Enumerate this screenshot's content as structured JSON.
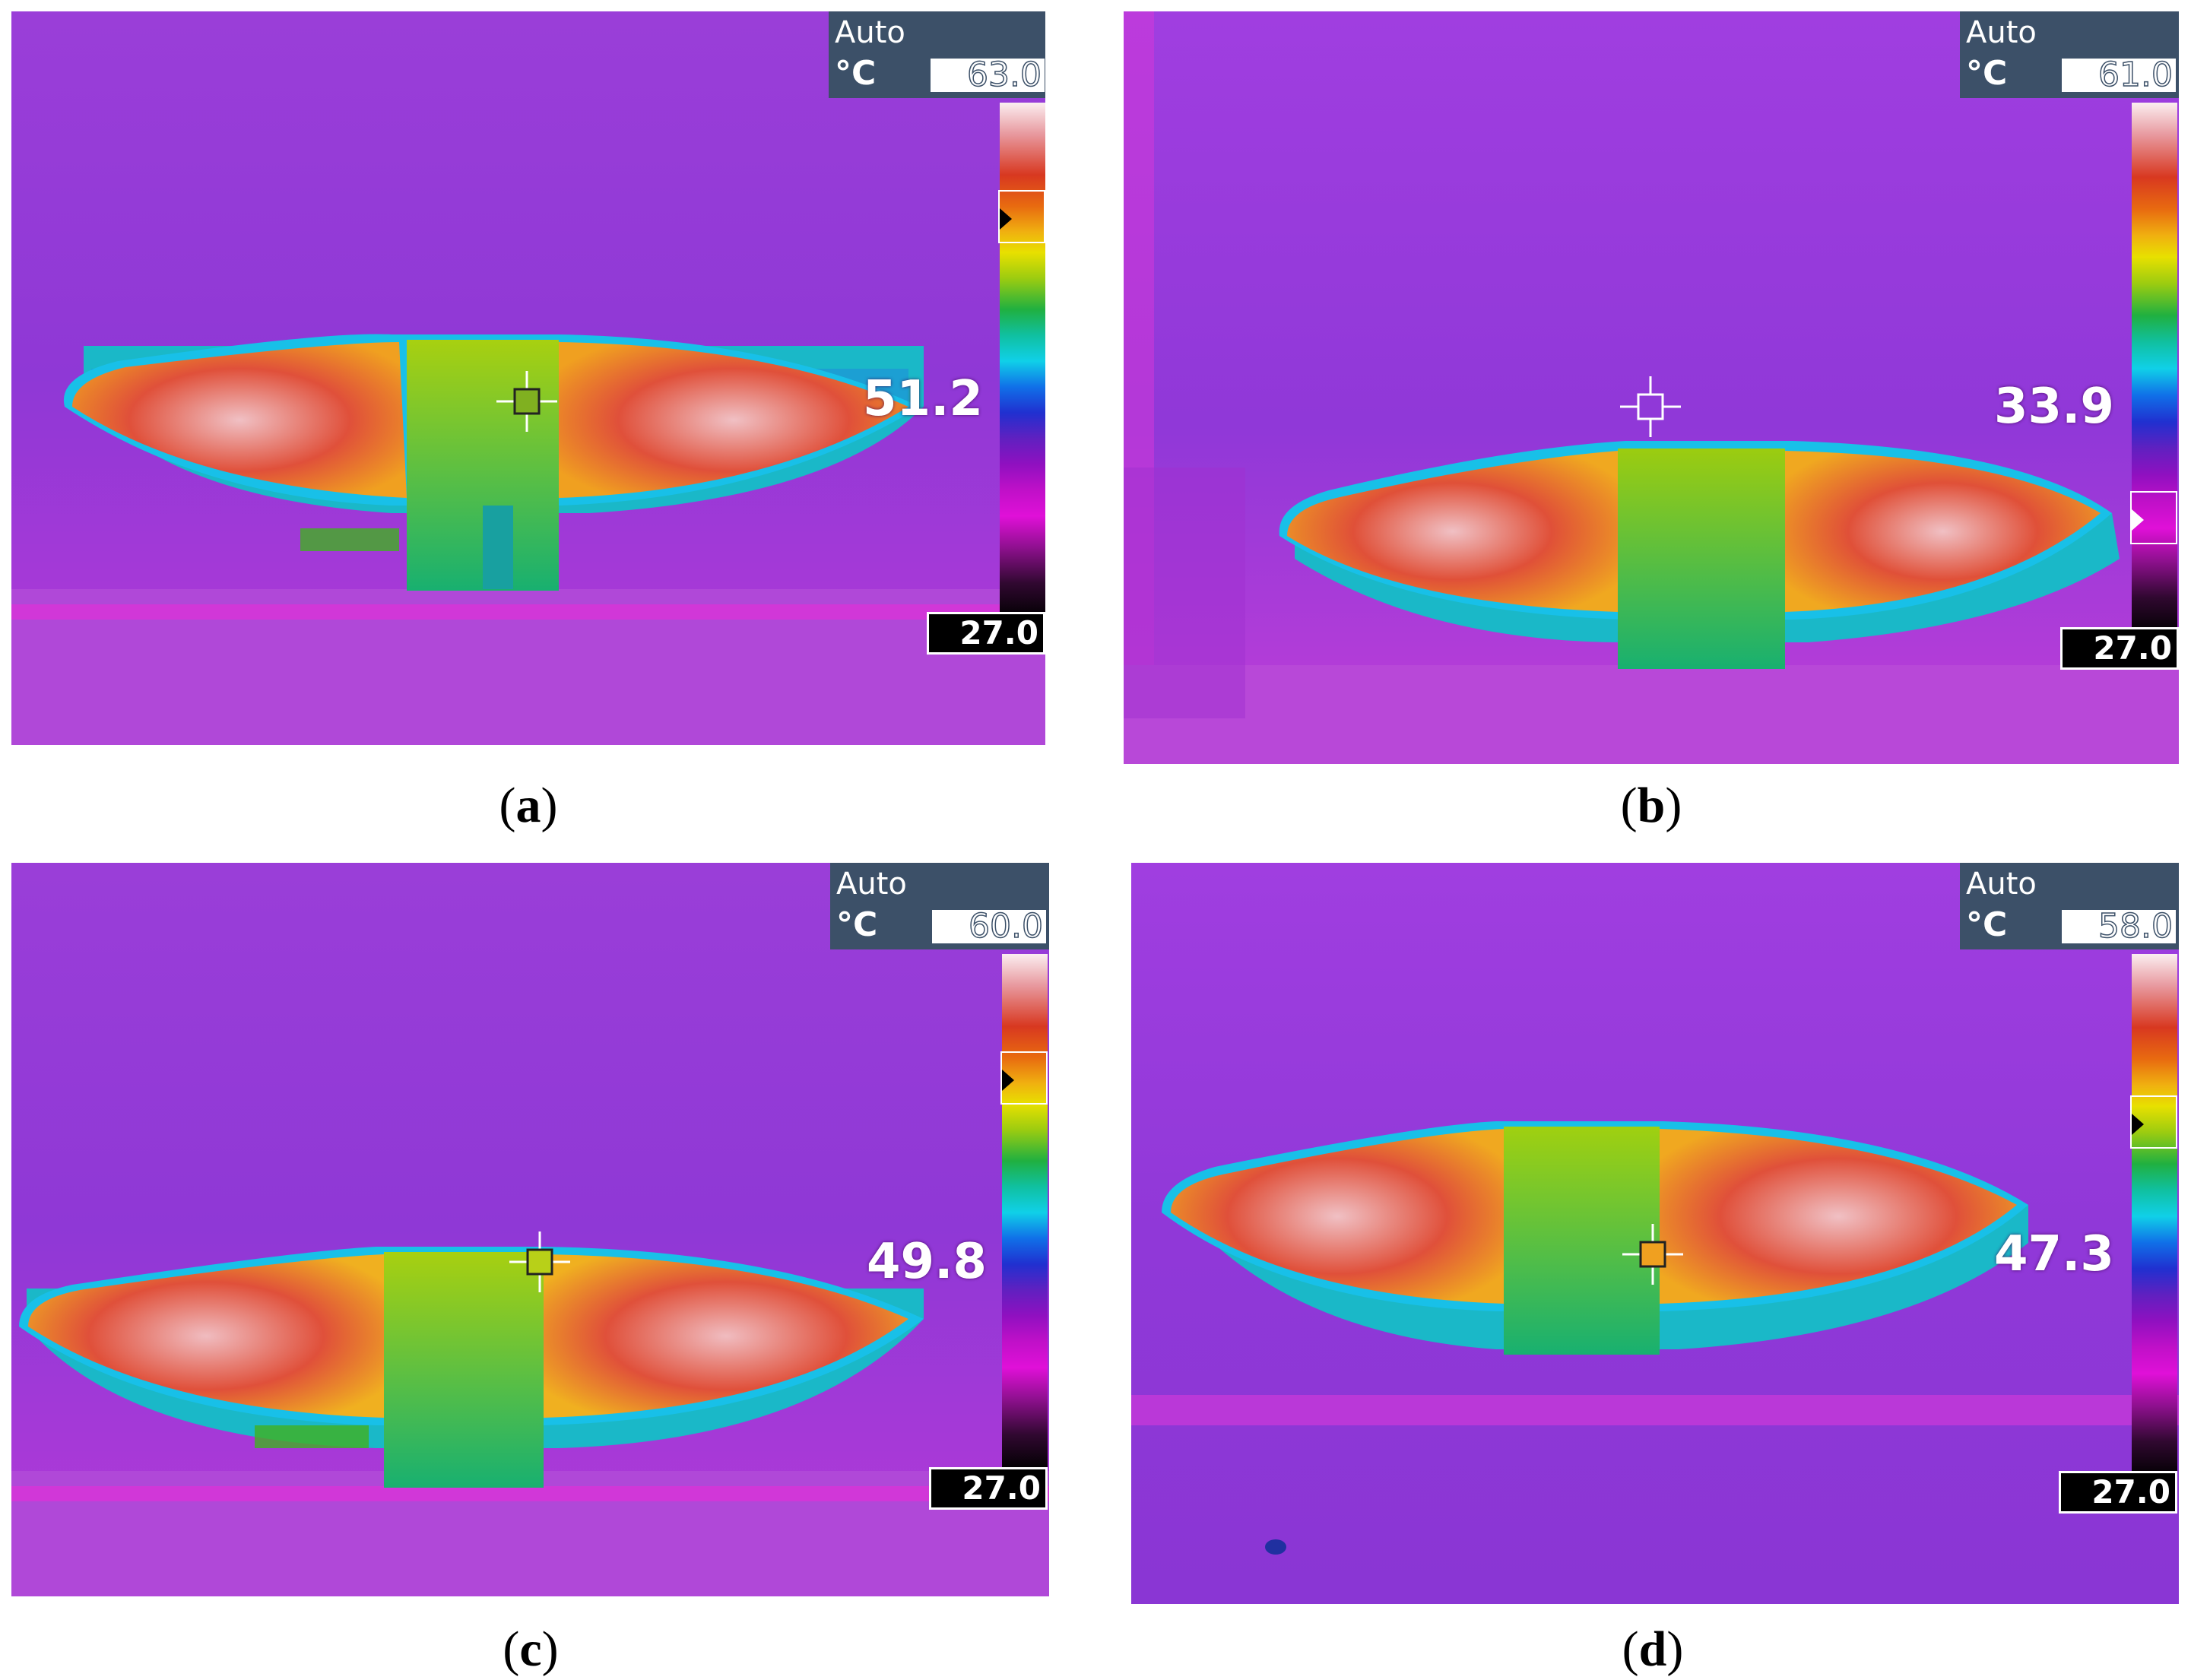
{
  "panels": [
    {
      "id": "a",
      "caption": "a",
      "hud": {
        "mode": "Auto",
        "unit": "°C",
        "max": "63.0",
        "min": "27.0"
      },
      "spot_temperature": "51.2",
      "level_marker_fraction": 0.22
    },
    {
      "id": "b",
      "caption": "b",
      "hud": {
        "mode": "Auto",
        "unit": "°C",
        "max": "61.0",
        "min": "27.0"
      },
      "spot_temperature": "33.9",
      "level_marker_fraction": 0.78
    },
    {
      "id": "c",
      "caption": "c",
      "hud": {
        "mode": "Auto",
        "unit": "°C",
        "max": "60.0",
        "min": "27.0"
      },
      "spot_temperature": "49.8",
      "level_marker_fraction": 0.24
    },
    {
      "id": "d",
      "caption": "d",
      "hud": {
        "mode": "Auto",
        "unit": "°C",
        "max": "58.0",
        "min": "27.0"
      },
      "spot_temperature": "47.3",
      "level_marker_fraction": 0.32
    }
  ],
  "palette": {
    "background": "#9b3bd8",
    "hot": "#e03a20",
    "hottest": "#f2c4c8",
    "warm": "#f0a020",
    "mid": "#8ccc18",
    "cool": "#18c8b8",
    "cold": "#2050d8",
    "rim": "#e020d8"
  },
  "icons": {
    "spot": "crosshair-icon"
  }
}
